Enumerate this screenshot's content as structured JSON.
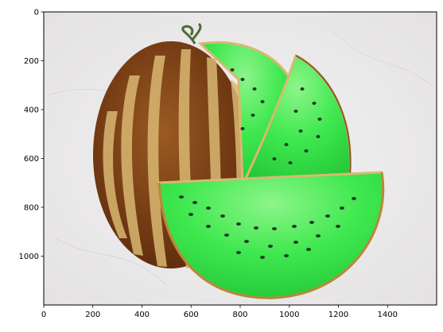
{
  "figure": {
    "image_subject": "green-fleshed melon",
    "x_ticks": [
      "0",
      "200",
      "400",
      "600",
      "800",
      "1000",
      "1200",
      "1400"
    ],
    "y_ticks": [
      "0",
      "200",
      "400",
      "600",
      "800",
      "1000"
    ],
    "x_range": [
      0,
      1600
    ],
    "y_range": [
      1200,
      0
    ],
    "colors": {
      "background": "#eceaea",
      "rind_dark": "#7a3b14",
      "rind_light": "#d9b872",
      "flesh": "#3fe84f",
      "flesh_light": "#9ef59a",
      "seed": "#1f3a22"
    }
  }
}
